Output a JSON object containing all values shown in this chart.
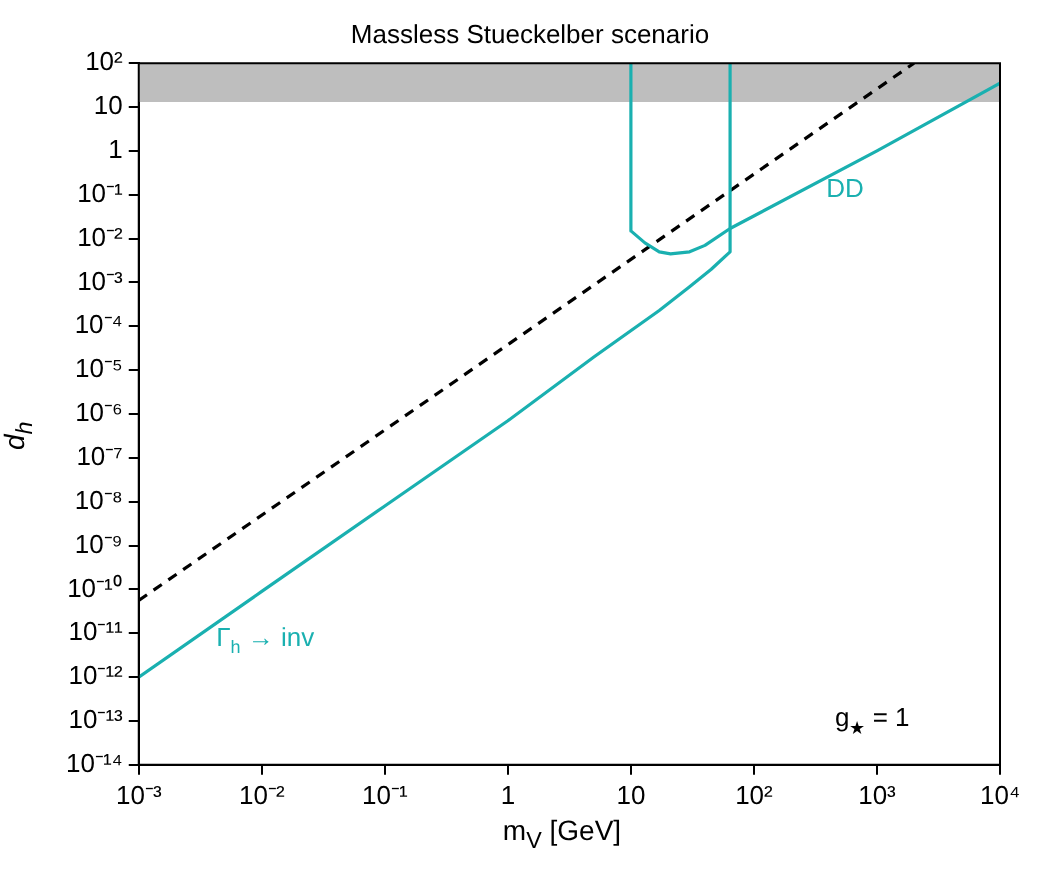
{
  "chart_data": {
    "type": "line",
    "title": "Massless Stueckelber scenario",
    "xlabel": "m$_{V}$ [GeV]",
    "ylabel": "d$_{h}$",
    "log": "xy",
    "xlim": [
      0.001,
      10000
    ],
    "ylim": [
      1e-14,
      100
    ],
    "xticks": [
      {
        "value": 0.001,
        "label": "10⁻³"
      },
      {
        "value": 0.01,
        "label": "10⁻²"
      },
      {
        "value": 0.1,
        "label": "10⁻¹"
      },
      1,
      10,
      {
        "value": 100,
        "label": "10²"
      },
      {
        "value": 1000,
        "label": "10³"
      },
      {
        "value": 10000,
        "label": "10⁴"
      }
    ],
    "yticks": [
      {
        "value": 1e-14,
        "label": "10⁻¹⁴"
      },
      {
        "value": 1e-13,
        "label": "10⁻¹³"
      },
      {
        "value": 1e-12,
        "label": "10⁻¹²"
      },
      {
        "value": 1e-11,
        "label": "10⁻¹¹"
      },
      {
        "value": 1e-10,
        "label": "10⁻¹⁰"
      },
      {
        "value": 1e-09,
        "label": "10⁻⁹"
      },
      {
        "value": 1e-08,
        "label": "10⁻⁸"
      },
      {
        "value": 1e-07,
        "label": "10⁻⁷"
      },
      {
        "value": 1e-06,
        "label": "10⁻⁶"
      },
      {
        "value": 1e-05,
        "label": "10⁻⁵"
      },
      {
        "value": 0.0001,
        "label": "10⁻⁴"
      },
      {
        "value": 0.001,
        "label": "10⁻³"
      },
      {
        "value": 0.01,
        "label": "10⁻²"
      },
      {
        "value": 0.1,
        "label": "10⁻¹"
      },
      1,
      10,
      {
        "value": 100,
        "label": "10²"
      }
    ],
    "grid": false,
    "legend": false,
    "marker": "none",
    "series": [
      {
        "name": "Γ$_{h}$ → inv",
        "color": "#1ab0b0",
        "line_style": "solid",
        "x": [
          0.001,
          0.01,
          0.1,
          1,
          5,
          17,
          30,
          45,
          64,
          64
        ],
        "values": [
          1e-12,
          9e-11,
          8e-09,
          7e-07,
          2e-05,
          0.00023,
          0.0008,
          0.002,
          0.005,
          100
        ]
      },
      {
        "name": "DD",
        "color": "#1ab0b0",
        "line_style": "solid",
        "x": [
          10,
          10,
          13,
          17,
          21,
          30,
          40,
          64,
          1000,
          10000
        ],
        "values": [
          100,
          0.015,
          0.008,
          0.005,
          0.0045,
          0.005,
          0.007,
          0.017,
          1,
          35
        ]
      },
      {
        "color": "#000000",
        "line_style": "dashed",
        "x": [
          0.001,
          2000
        ],
        "values": [
          5.6e-11,
          100
        ]
      }
    ],
    "bands": [
      {
        "axis": "y",
        "from": 13,
        "to": 100,
        "color": "#bebebe"
      }
    ],
    "annotations": [
      "g$_{★}$ = 1"
    ]
  }
}
